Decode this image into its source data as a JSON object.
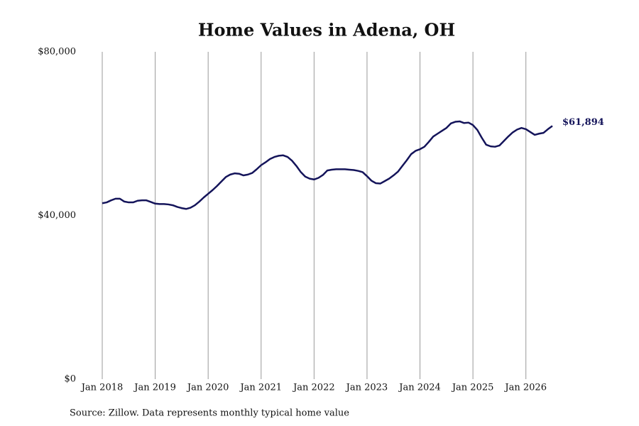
{
  "chart_data": {
    "type": "line",
    "title": "Home Values in Adena, OH",
    "source": "Source: Zillow. Data represents monthly typical home value",
    "x": [
      "2018-01",
      "2018-02",
      "2018-03",
      "2018-04",
      "2018-05",
      "2018-06",
      "2018-07",
      "2018-08",
      "2018-09",
      "2018-10",
      "2018-11",
      "2018-12",
      "2019-01",
      "2019-02",
      "2019-03",
      "2019-04",
      "2019-05",
      "2019-06",
      "2019-07",
      "2019-08",
      "2019-09",
      "2019-10",
      "2019-11",
      "2019-12",
      "2020-01",
      "2020-02",
      "2020-03",
      "2020-04",
      "2020-05",
      "2020-06",
      "2020-07",
      "2020-08",
      "2020-09",
      "2020-10",
      "2020-11",
      "2020-12",
      "2021-01",
      "2021-02",
      "2021-03",
      "2021-04",
      "2021-05",
      "2021-06",
      "2021-07",
      "2021-08",
      "2021-09",
      "2021-10",
      "2021-11",
      "2021-12",
      "2022-01",
      "2022-02",
      "2022-03",
      "2022-04",
      "2022-05",
      "2022-06",
      "2022-07",
      "2022-08",
      "2022-09",
      "2022-10",
      "2022-11",
      "2022-12",
      "2023-01",
      "2023-02",
      "2023-03",
      "2023-04",
      "2023-05",
      "2023-06",
      "2023-07",
      "2023-08",
      "2023-09",
      "2023-10",
      "2023-11",
      "2023-12",
      "2024-01",
      "2024-02",
      "2024-03",
      "2024-04",
      "2024-05",
      "2024-06",
      "2024-07",
      "2024-08",
      "2024-09",
      "2024-10",
      "2024-11",
      "2024-12",
      "2025-01",
      "2025-02",
      "2025-03",
      "2025-04",
      "2025-05",
      "2025-06",
      "2025-07",
      "2025-08",
      "2025-09",
      "2025-10",
      "2025-11",
      "2025-12",
      "2026-01",
      "2026-02",
      "2026-03",
      "2026-04",
      "2026-05",
      "2026-06",
      "2026-07"
    ],
    "series": [
      {
        "name": "Home value",
        "color": "#14145a",
        "values": [
          43000,
          43200,
          43700,
          44100,
          44100,
          43400,
          43200,
          43200,
          43600,
          43700,
          43700,
          43300,
          42900,
          42800,
          42800,
          42700,
          42500,
          42100,
          41800,
          41600,
          41900,
          42500,
          43400,
          44400,
          45300,
          46200,
          47200,
          48300,
          49400,
          50000,
          50300,
          50200,
          49800,
          50000,
          50400,
          51300,
          52300,
          53000,
          53800,
          54300,
          54600,
          54700,
          54300,
          53400,
          52100,
          50600,
          49500,
          49000,
          48800,
          49200,
          49900,
          51000,
          51200,
          51300,
          51300,
          51300,
          51200,
          51100,
          50900,
          50600,
          49600,
          48500,
          47900,
          47800,
          48400,
          49000,
          49800,
          50700,
          52100,
          53500,
          55000,
          55800,
          56200,
          56800,
          58000,
          59300,
          60000,
          60700,
          61400,
          62500,
          62900,
          63000,
          62600,
          62700,
          62100,
          60900,
          59000,
          57300,
          56900,
          56800,
          57100,
          58200,
          59300,
          60300,
          61000,
          61400,
          61100,
          60400,
          59700,
          60000,
          60200,
          61100,
          61894
        ],
        "value_labels": [
          null,
          null,
          null,
          null,
          null,
          null,
          null,
          null,
          null,
          null,
          null,
          null,
          null,
          null,
          null,
          null,
          null,
          null,
          null,
          null,
          null,
          null,
          null,
          null,
          null,
          null,
          null,
          null,
          null,
          null,
          null,
          null,
          null,
          null,
          null,
          null,
          null,
          null,
          null,
          null,
          null,
          null,
          null,
          null,
          null,
          null,
          null,
          null,
          null,
          null,
          null,
          null,
          null,
          null,
          null,
          null,
          null,
          null,
          null,
          null,
          null,
          null,
          null,
          null,
          null,
          null,
          null,
          null,
          null,
          null,
          null,
          null,
          null,
          null,
          null,
          null,
          null,
          null,
          null,
          null,
          null,
          null,
          null,
          null,
          null,
          null,
          null,
          null,
          null,
          null,
          null,
          null,
          null,
          null,
          null,
          null,
          null,
          null,
          null,
          null,
          null,
          null,
          "$61,894"
        ]
      }
    ],
    "xlim": [
      "2018-01",
      "2026-07"
    ],
    "xticks": [
      {
        "value": "2018-01",
        "label": "Jan 2018"
      },
      {
        "value": "2019-01",
        "label": "Jan 2019"
      },
      {
        "value": "2020-01",
        "label": "Jan 2020"
      },
      {
        "value": "2021-01",
        "label": "Jan 2021"
      },
      {
        "value": "2022-01",
        "label": "Jan 2022"
      },
      {
        "value": "2023-01",
        "label": "Jan 2023"
      },
      {
        "value": "2024-01",
        "label": "Jan 2024"
      },
      {
        "value": "2025-01",
        "label": "Jan 2025"
      },
      {
        "value": "2026-01",
        "label": "Jan 2026"
      }
    ],
    "ylim": [
      0,
      80000
    ],
    "yticks": [
      {
        "value": 0,
        "label": "$0"
      },
      {
        "value": 40000,
        "label": "$40,000"
      },
      {
        "value": 80000,
        "label": "$80,000"
      }
    ],
    "grid": "x"
  }
}
